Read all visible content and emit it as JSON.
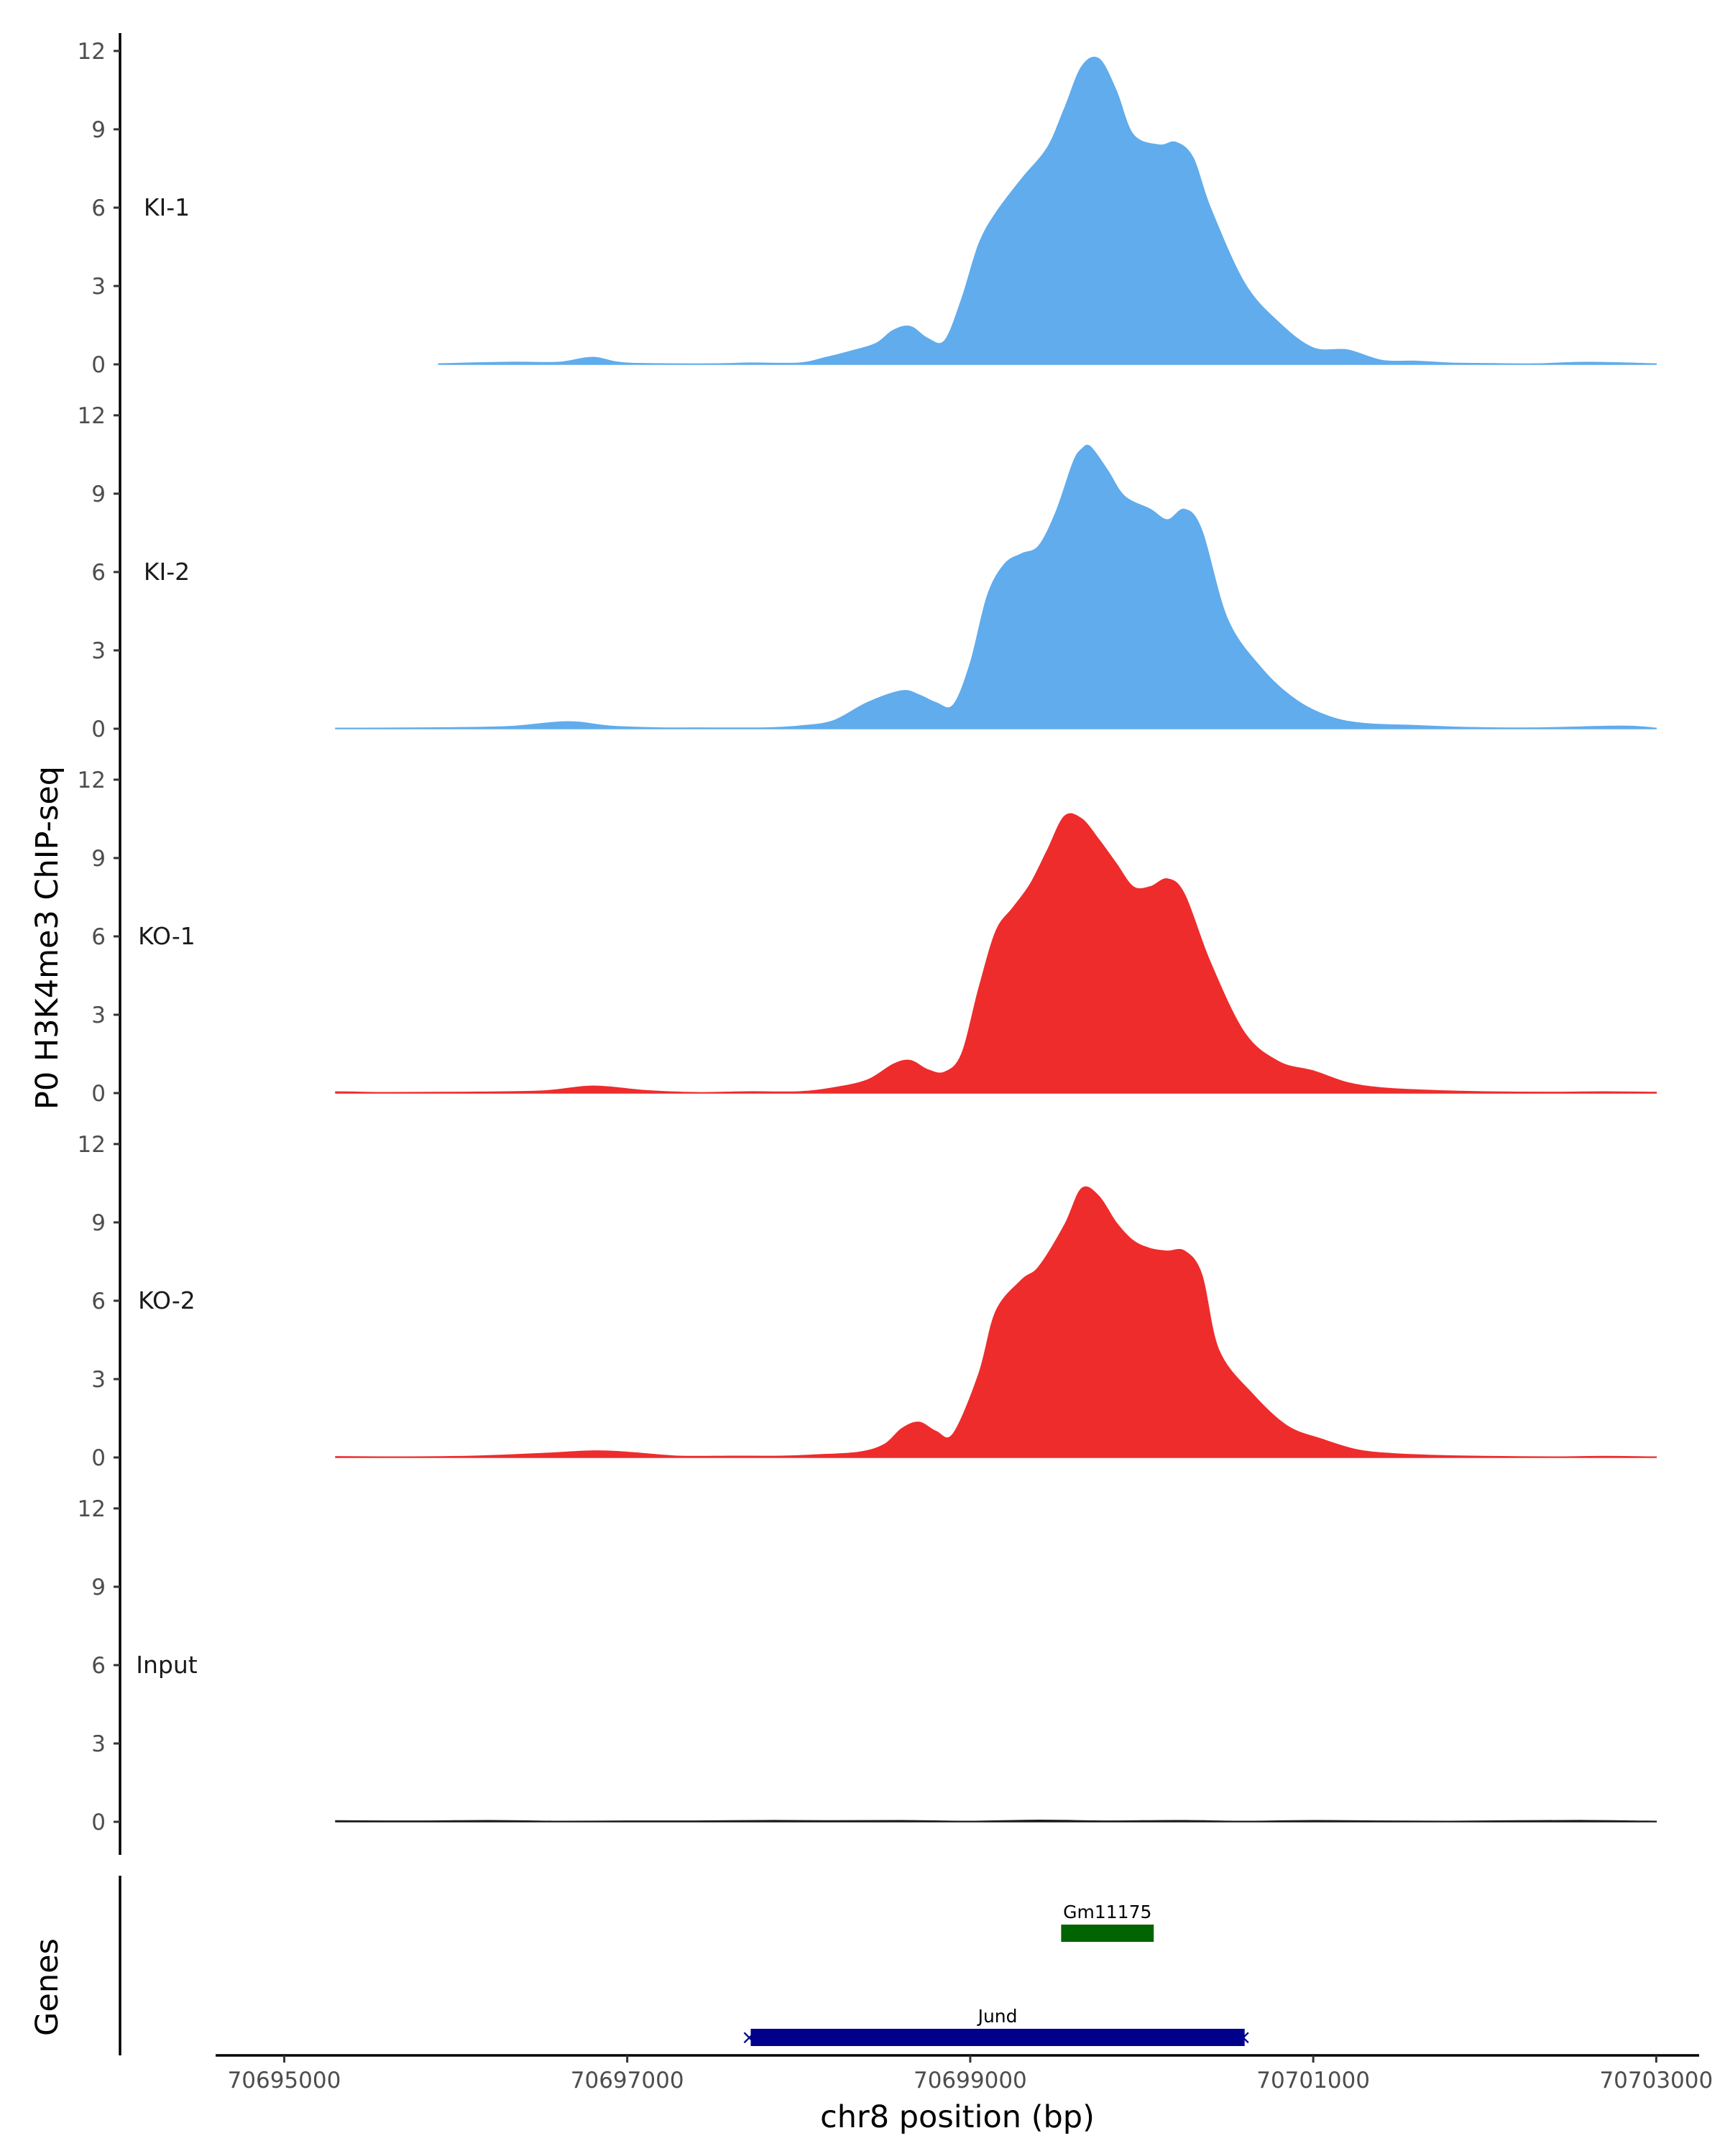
{
  "chart_data": {
    "type": "area",
    "ylabel": "P0 H3K4me3 ChIP-seq",
    "xlabel": "chr8 position (bp)",
    "xlim": [
      70694600,
      70703250
    ],
    "xticks": [
      70695000,
      70697000,
      70699000,
      70701000,
      70703000
    ],
    "xtick_labels": [
      "70695000",
      "70697000",
      "70699000",
      "70701000",
      "70703000"
    ],
    "ylim": [
      0,
      12.3
    ],
    "yticks": [
      0,
      3,
      6,
      9,
      12
    ],
    "ytick_labels": [
      "0",
      "3",
      "6",
      "9",
      "12"
    ],
    "tracks": [
      {
        "name": "KI-1",
        "color": "#60ACEC",
        "x": [
          70695900,
          70696300,
          70696600,
          70696800,
          70697000,
          70697500,
          70697700,
          70698000,
          70698150,
          70698300,
          70698450,
          70698550,
          70698650,
          70698750,
          70698850,
          70698950,
          70699050,
          70699150,
          70699300,
          70699450,
          70699550,
          70699650,
          70699750,
          70699850,
          70699950,
          70700100,
          70700200,
          70700300,
          70700400,
          70700600,
          70700800,
          70701000,
          70701200,
          70701400,
          70701600,
          70701800,
          70702000,
          70702300,
          70702600,
          70703000
        ],
        "y": [
          0.02,
          0.08,
          0.08,
          0.27,
          0.05,
          0.02,
          0.05,
          0.05,
          0.25,
          0.5,
          0.8,
          1.3,
          1.45,
          1.0,
          0.9,
          2.5,
          4.6,
          5.8,
          7.1,
          8.3,
          9.8,
          11.4,
          11.7,
          10.5,
          8.8,
          8.4,
          8.5,
          7.9,
          6.0,
          3.1,
          1.6,
          0.63,
          0.55,
          0.15,
          0.12,
          0.05,
          0.03,
          0.02,
          0.08,
          0.02
        ]
      },
      {
        "name": "KI-2",
        "color": "#60ACEC",
        "x": [
          70695300,
          70695800,
          70696300,
          70696650,
          70696900,
          70697200,
          70697400,
          70697800,
          70698000,
          70698200,
          70698400,
          70698600,
          70698700,
          70698800,
          70698900,
          70699000,
          70699100,
          70699200,
          70699300,
          70699400,
          70699500,
          70699600,
          70699650,
          70699700,
          70699800,
          70699900,
          70700050,
          70700150,
          70700250,
          70700350,
          70700500,
          70700700,
          70700900,
          70701100,
          70701300,
          70701600,
          70701900,
          70702300,
          70702800,
          70703000
        ],
        "y": [
          0.02,
          0.03,
          0.08,
          0.27,
          0.1,
          0.03,
          0.03,
          0.03,
          0.1,
          0.3,
          1.0,
          1.45,
          1.3,
          1.0,
          0.9,
          2.5,
          5.1,
          6.3,
          6.7,
          7.0,
          8.3,
          10.2,
          10.7,
          10.8,
          9.9,
          8.9,
          8.4,
          8.0,
          8.4,
          7.6,
          4.2,
          2.3,
          1.1,
          0.45,
          0.2,
          0.12,
          0.05,
          0.03,
          0.1,
          0.02
        ]
      },
      {
        "name": "KO-1",
        "color": "#EE2C2C",
        "x": [
          70695300,
          70695600,
          70696000,
          70696500,
          70696800,
          70697100,
          70697400,
          70697700,
          70698000,
          70698200,
          70698400,
          70698550,
          70698650,
          70698750,
          70698850,
          70698950,
          70699050,
          70699150,
          70699250,
          70699350,
          70699450,
          70699550,
          70699650,
          70699750,
          70699850,
          70699950,
          70700050,
          70700150,
          70700250,
          70700400,
          70700600,
          70700800,
          70701000,
          70701200,
          70701400,
          70701700,
          70702000,
          70702400,
          70702700,
          70703000
        ],
        "y": [
          0.05,
          0.02,
          0.03,
          0.08,
          0.27,
          0.1,
          0.02,
          0.05,
          0.05,
          0.2,
          0.5,
          1.1,
          1.25,
          0.9,
          0.8,
          1.5,
          4.0,
          6.2,
          7.1,
          8.0,
          9.3,
          10.6,
          10.5,
          9.7,
          8.8,
          7.9,
          7.9,
          8.2,
          7.6,
          5.0,
          2.3,
          1.2,
          0.85,
          0.4,
          0.2,
          0.1,
          0.05,
          0.03,
          0.05,
          0.03
        ]
      },
      {
        "name": "KO-2",
        "color": "#EE2C2C",
        "x": [
          70695300,
          70695700,
          70696100,
          70696500,
          70696800,
          70697000,
          70697300,
          70697600,
          70697900,
          70698100,
          70698350,
          70698500,
          70698600,
          70698700,
          70698800,
          70698900,
          70699050,
          70699150,
          70699300,
          70699400,
          70699550,
          70699650,
          70699750,
          70699850,
          70699950,
          70700050,
          70700150,
          70700250,
          70700350,
          70700450,
          70700650,
          70700850,
          70701050,
          70701250,
          70701450,
          70701700,
          70702000,
          70702400,
          70702700,
          70703000
        ],
        "y": [
          0.03,
          0.02,
          0.05,
          0.15,
          0.25,
          0.2,
          0.05,
          0.05,
          0.05,
          0.1,
          0.2,
          0.5,
          1.1,
          1.35,
          1.0,
          0.9,
          3.2,
          5.6,
          6.8,
          7.3,
          8.9,
          10.3,
          10.0,
          9.0,
          8.3,
          8.0,
          7.9,
          7.9,
          7.0,
          4.1,
          2.4,
          1.2,
          0.7,
          0.3,
          0.15,
          0.08,
          0.04,
          0.02,
          0.04,
          0.02
        ]
      },
      {
        "name": "Input",
        "color": "#1a1a1a",
        "x": [
          70695300,
          70695800,
          70696200,
          70696600,
          70697000,
          70697400,
          70697800,
          70698200,
          70698600,
          70699000,
          70699400,
          70699800,
          70700200,
          70700600,
          70701000,
          70701400,
          70701800,
          70702200,
          70702600,
          70703000
        ],
        "y": [
          0.04,
          0.03,
          0.05,
          0.02,
          0.03,
          0.03,
          0.05,
          0.04,
          0.05,
          0.02,
          0.06,
          0.03,
          0.05,
          0.02,
          0.05,
          0.03,
          0.02,
          0.04,
          0.05,
          0.02
        ]
      }
    ],
    "genes": [
      {
        "name": "Gm11175",
        "start": 70699530,
        "end": 70700070,
        "color": "#006400",
        "strand": ""
      },
      {
        "name": "Jund",
        "start": 70697720,
        "end": 70700600,
        "color": "#00008B",
        "strand": "-"
      }
    ],
    "gene_track_label": "Genes"
  }
}
